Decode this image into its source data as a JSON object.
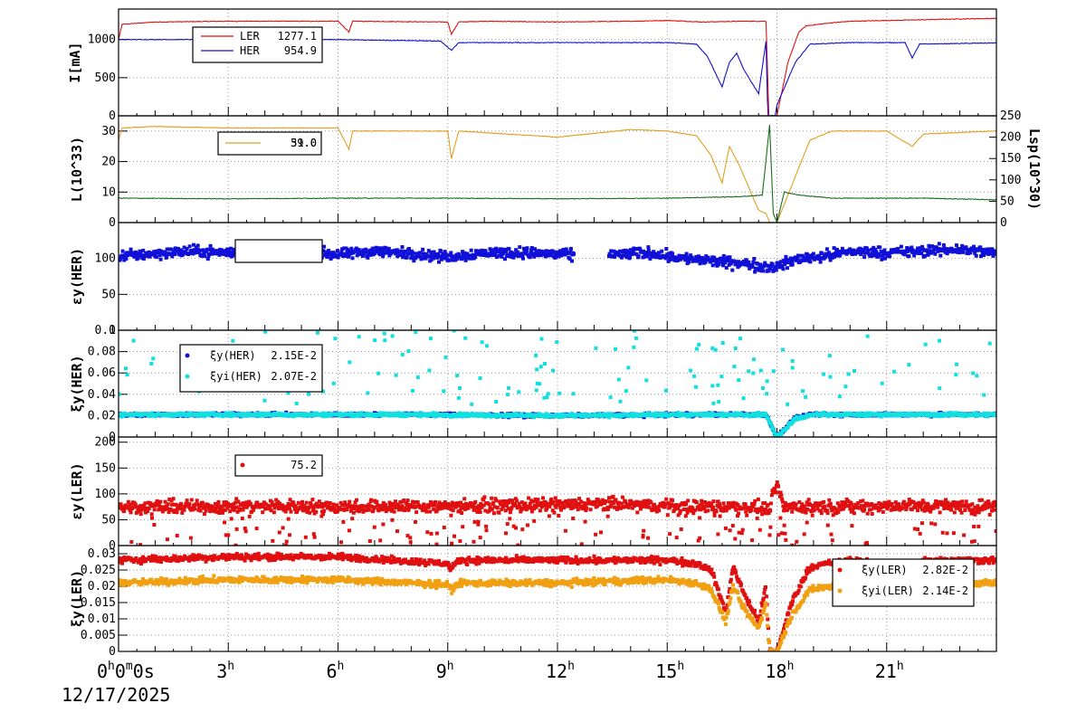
{
  "chart_data": [
    {
      "type": "line",
      "ylabel": "I[mA]",
      "ylim": [
        0,
        1400
      ],
      "yticks": [
        0,
        500,
        1000
      ],
      "legend": "top-left",
      "series": [
        {
          "name": "LER",
          "value": "1277.1",
          "color": "#e01010",
          "points": [
            [
              0,
              1000
            ],
            [
              0.1,
              1200
            ],
            [
              1,
              1230
            ],
            [
              3,
              1240
            ],
            [
              6,
              1240
            ],
            [
              6.3,
              1100
            ],
            [
              6.4,
              1240
            ],
            [
              9,
              1230
            ],
            [
              9.1,
              1070
            ],
            [
              9.3,
              1230
            ],
            [
              10,
              1240
            ],
            [
              12,
              1230
            ],
            [
              14,
              1240
            ],
            [
              15,
              1250
            ],
            [
              16,
              1230
            ],
            [
              17,
              1240
            ],
            [
              17.7,
              1240
            ],
            [
              17.78,
              0
            ],
            [
              18,
              0
            ],
            [
              18.3,
              700
            ],
            [
              18.6,
              1100
            ],
            [
              18.8,
              1180
            ],
            [
              19.5,
              1220
            ],
            [
              20,
              1240
            ],
            [
              21,
              1250
            ],
            [
              23,
              1270
            ],
            [
              23.9,
              1277
            ]
          ]
        },
        {
          "name": "HER",
          "value": "954.9",
          "color": "#1010d0",
          "points": [
            [
              0,
              1000
            ],
            [
              3,
              1000
            ],
            [
              6,
              1000
            ],
            [
              8.8,
              980
            ],
            [
              9.1,
              860
            ],
            [
              9.3,
              960
            ],
            [
              12,
              960
            ],
            [
              14,
              960
            ],
            [
              15,
              960
            ],
            [
              15.8,
              940
            ],
            [
              16.1,
              780
            ],
            [
              16.5,
              380
            ],
            [
              16.7,
              700
            ],
            [
              16.9,
              820
            ],
            [
              17.1,
              600
            ],
            [
              17.5,
              290
            ],
            [
              17.7,
              980
            ],
            [
              17.75,
              0
            ],
            [
              17.95,
              0
            ],
            [
              18,
              140
            ],
            [
              18.5,
              700
            ],
            [
              18.9,
              940
            ],
            [
              20,
              960
            ],
            [
              21.5,
              960
            ],
            [
              21.7,
              760
            ],
            [
              21.9,
              940
            ],
            [
              23.9,
              955
            ]
          ]
        }
      ]
    },
    {
      "type": "line",
      "ylabel": "L(10^33)",
      "ylim": [
        0,
        35
      ],
      "yticks": [
        0,
        10,
        20,
        30
      ],
      "y2label": "Lsp(10^30)",
      "y2ticks": [
        0,
        50,
        100,
        150,
        200,
        250
      ],
      "legend": "top-left",
      "legend_values": [
        "59.0",
        "31.0"
      ],
      "series": [
        {
          "color": "#e0a020",
          "points": [
            [
              0,
              27
            ],
            [
              0.1,
              31
            ],
            [
              1,
              31.5
            ],
            [
              3,
              31
            ],
            [
              6,
              31
            ],
            [
              6.3,
              24
            ],
            [
              6.4,
              30
            ],
            [
              9,
              30
            ],
            [
              9.1,
              21
            ],
            [
              9.3,
              30
            ],
            [
              12,
              28
            ],
            [
              14,
              30.5
            ],
            [
              15,
              30
            ],
            [
              15.8,
              28.5
            ],
            [
              16.2,
              22
            ],
            [
              16.5,
              13
            ],
            [
              16.7,
              25
            ],
            [
              17,
              18
            ],
            [
              17.5,
              4
            ],
            [
              17.7,
              3
            ],
            [
              17.8,
              0
            ],
            [
              18,
              0
            ],
            [
              18.5,
              15
            ],
            [
              18.9,
              27
            ],
            [
              19.5,
              30
            ],
            [
              21,
              30
            ],
            [
              21.7,
              25
            ],
            [
              22,
              29
            ],
            [
              23.9,
              30
            ]
          ]
        },
        {
          "color": "#1a6e1a",
          "points": [
            [
              0,
              8
            ],
            [
              3,
              7.8
            ],
            [
              6,
              8
            ],
            [
              9,
              8
            ],
            [
              12,
              7.8
            ],
            [
              15,
              8
            ],
            [
              17,
              8.5
            ],
            [
              17.6,
              9
            ],
            [
              17.8,
              32
            ],
            [
              17.9,
              3
            ],
            [
              18,
              0
            ],
            [
              18.2,
              10
            ],
            [
              18.6,
              9
            ],
            [
              19.5,
              8
            ],
            [
              22,
              8
            ],
            [
              23.9,
              7.5
            ]
          ]
        }
      ]
    },
    {
      "type": "scatter",
      "ylabel": "εy(HER)",
      "ylim": [
        0,
        150
      ],
      "yticks": [
        0,
        50,
        100
      ],
      "legend": "top-left",
      "series": [
        {
          "color": "#1010d8",
          "points": [
            [
              0,
              103
            ],
            [
              1,
              107
            ],
            [
              2,
              110
            ],
            [
              3,
              108
            ],
            [
              4,
              110
            ],
            [
              5,
              112
            ],
            [
              6,
              105
            ],
            [
              7,
              110
            ],
            [
              8,
              107
            ],
            [
              9,
              102
            ],
            [
              10,
              108
            ],
            [
              11,
              108
            ],
            [
              12,
              106
            ],
            [
              12.5,
              104
            ],
            [
              13.5,
              105
            ],
            [
              14.5,
              108
            ],
            [
              15.5,
              100
            ],
            [
              16.5,
              95
            ],
            [
              17,
              93
            ],
            [
              17.5,
              90
            ],
            [
              17.9,
              88
            ],
            [
              18.2,
              92
            ],
            [
              18.6,
              100
            ],
            [
              19.5,
              105
            ],
            [
              20,
              110
            ],
            [
              21,
              108
            ],
            [
              22,
              110
            ],
            [
              23,
              113
            ],
            [
              23.9,
              108
            ]
          ]
        }
      ]
    },
    {
      "type": "scatter",
      "ylabel": "ξy(HER)",
      "ylim": [
        0,
        0.1
      ],
      "yticks": [
        0,
        0.02,
        0.04,
        0.06,
        0.08,
        0.1
      ],
      "legend": "top-left",
      "series": [
        {
          "name": "ξy(HER)",
          "value": "2.15E-2",
          "color": "#1010d8",
          "points": [
            [
              0,
              0.021
            ],
            [
              4,
              0.021
            ],
            [
              8,
              0.021
            ],
            [
              12,
              0.02
            ],
            [
              16,
              0.021
            ],
            [
              17.7,
              0.021
            ],
            [
              18,
              0.0
            ],
            [
              18.5,
              0.018
            ],
            [
              19,
              0.021
            ],
            [
              23.9,
              0.021
            ]
          ]
        },
        {
          "name": "ξyi(HER)",
          "value": "2.07E-2",
          "color": "#10e0e0",
          "points": [
            [
              0,
              0.021
            ],
            [
              4,
              0.021
            ],
            [
              8,
              0.021
            ],
            [
              12,
              0.02
            ],
            [
              16,
              0.021
            ],
            [
              17.7,
              0.021
            ],
            [
              18,
              0.0
            ],
            [
              18.5,
              0.017
            ],
            [
              19,
              0.021
            ],
            [
              23.9,
              0.021
            ]
          ]
        }
      ]
    },
    {
      "type": "scatter",
      "ylabel": "εy(LER)",
      "ylim": [
        0,
        210
      ],
      "yticks": [
        0,
        50,
        100,
        150,
        200
      ],
      "legend": "top-left",
      "series": [
        {
          "value": "75.2",
          "color": "#e01010",
          "points": [
            [
              0,
              75
            ],
            [
              2,
              75
            ],
            [
              4,
              76
            ],
            [
              6,
              75
            ],
            [
              8,
              76
            ],
            [
              10,
              77
            ],
            [
              12,
              78
            ],
            [
              13.5,
              80
            ],
            [
              15,
              76
            ],
            [
              17,
              75
            ],
            [
              17.8,
              72
            ],
            [
              18,
              120
            ],
            [
              18.2,
              75
            ],
            [
              20,
              75
            ],
            [
              22,
              77
            ],
            [
              23.9,
              75
            ]
          ]
        }
      ]
    },
    {
      "type": "scatter",
      "ylabel": "ξy(LER)",
      "ylim": [
        0,
        0.0325
      ],
      "yticks": [
        0,
        0.005,
        0.01,
        0.015,
        0.02,
        0.025,
        0.03
      ],
      "legend": "top-right",
      "series": [
        {
          "name": "ξy(LER)",
          "value": "2.82E-2",
          "color": "#e01010",
          "points": [
            [
              0,
              0.028
            ],
            [
              3,
              0.029
            ],
            [
              6,
              0.029
            ],
            [
              9,
              0.027
            ],
            [
              9.1,
              0.025
            ],
            [
              9.3,
              0.028
            ],
            [
              12,
              0.028
            ],
            [
              15,
              0.028
            ],
            [
              15.8,
              0.027
            ],
            [
              16.2,
              0.025
            ],
            [
              16.6,
              0.012
            ],
            [
              16.8,
              0.026
            ],
            [
              17.1,
              0.018
            ],
            [
              17.5,
              0.009
            ],
            [
              17.7,
              0.02
            ],
            [
              17.8,
              0.0
            ],
            [
              18,
              0.0
            ],
            [
              18.4,
              0.015
            ],
            [
              18.9,
              0.026
            ],
            [
              20,
              0.028
            ],
            [
              21.7,
              0.025
            ],
            [
              22,
              0.028
            ],
            [
              23.9,
              0.028
            ]
          ]
        },
        {
          "name": "ξyi(LER)",
          "value": "2.14E-2",
          "color": "#f0a010",
          "points": [
            [
              0,
              0.021
            ],
            [
              3,
              0.022
            ],
            [
              6,
              0.022
            ],
            [
              9,
              0.0205
            ],
            [
              9.1,
              0.019
            ],
            [
              9.3,
              0.021
            ],
            [
              12,
              0.021
            ],
            [
              15,
              0.022
            ],
            [
              15.8,
              0.021
            ],
            [
              16.2,
              0.019
            ],
            [
              16.6,
              0.009
            ],
            [
              16.8,
              0.02
            ],
            [
              17.1,
              0.013
            ],
            [
              17.5,
              0.007
            ],
            [
              17.7,
              0.015
            ],
            [
              17.8,
              0.0
            ],
            [
              18,
              0.0
            ],
            [
              18.4,
              0.011
            ],
            [
              18.9,
              0.019
            ],
            [
              20,
              0.021
            ],
            [
              21.7,
              0.019
            ],
            [
              22,
              0.021
            ],
            [
              23.9,
              0.021
            ]
          ]
        }
      ]
    }
  ],
  "x_axis": {
    "range_hours": [
      0,
      24
    ],
    "ticks": [
      {
        "h": 0,
        "label": "0",
        "sup": "h",
        "rest": "0",
        "sup2": "m",
        "rest2": "0s"
      },
      {
        "h": 3,
        "label": "3",
        "sup": "h"
      },
      {
        "h": 6,
        "label": "6",
        "sup": "h"
      },
      {
        "h": 9,
        "label": "9",
        "sup": "h"
      },
      {
        "h": 12,
        "label": "12",
        "sup": "h"
      },
      {
        "h": 15,
        "label": "15",
        "sup": "h"
      },
      {
        "h": 18,
        "label": "18",
        "sup": "h"
      },
      {
        "h": 21,
        "label": "21",
        "sup": "h"
      }
    ],
    "date": "12/17/2025"
  }
}
